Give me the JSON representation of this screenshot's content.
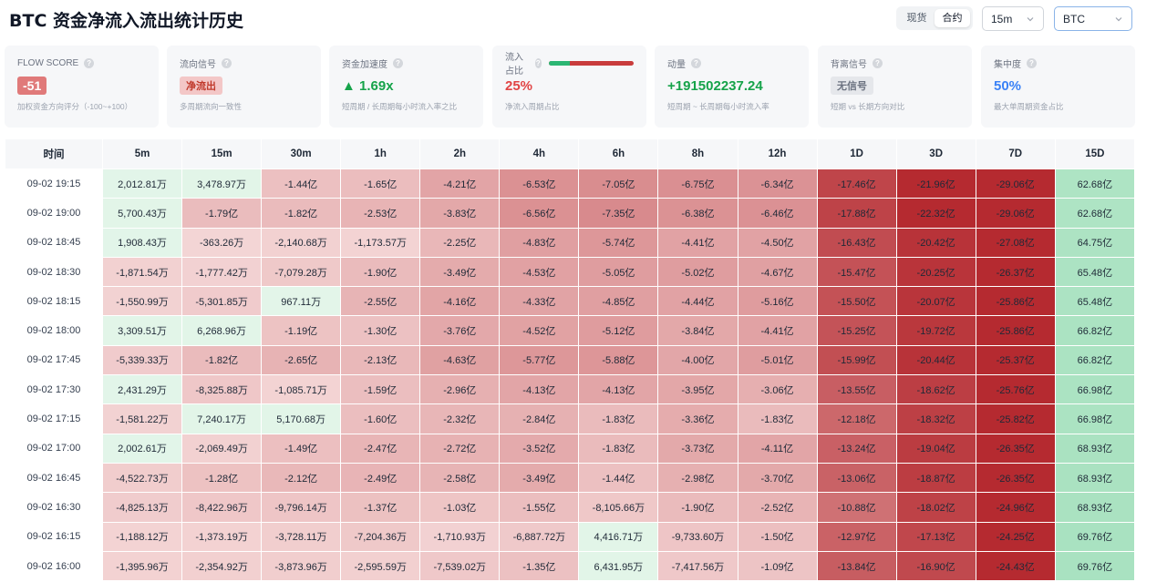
{
  "title": "BTC 资金净流入流出统计历史",
  "market_toggle": {
    "spot": "现货",
    "contract": "合约",
    "active": "contract"
  },
  "timeframe_select": {
    "value": "15m"
  },
  "symbol_select": {
    "value": "BTC"
  },
  "cards": {
    "flow_score": {
      "title": "FLOW SCORE",
      "value": "-51",
      "desc": "加权资金方向评分（-100~+100）"
    },
    "flow_signal": {
      "title": "流向信号",
      "value": "净流出",
      "desc": "多周期流向一致性"
    },
    "acceleration": {
      "title": "资金加速度",
      "value": "▲ 1.69x",
      "desc": "短周期 / 长周期每小时流入率之比"
    },
    "inflow_ratio": {
      "title": "流入占比",
      "value": "25%",
      "ratio": 0.25,
      "desc": "净流入周期占比"
    },
    "momentum": {
      "title": "动量",
      "value": "+191502237.24",
      "desc": "短周期 ~ 长周期每小时流入率"
    },
    "divergence": {
      "title": "背离信号",
      "value": "无信号",
      "desc": "短期 vs 长期方向对比"
    },
    "concentration": {
      "title": "集中度",
      "value": "50%",
      "desc": "最大单周期资金占比"
    }
  },
  "colors": {
    "strong_neg": "#b52a30",
    "light_neg": "#f4d6d6",
    "light_pos": "#e3f5e9",
    "strong_pos": "#a9e2c1",
    "positive_text": "#16a34a",
    "negative_text": "#e14545",
    "blue_text": "#3b82f6"
  },
  "table": {
    "columns": [
      "时间",
      "5m",
      "15m",
      "30m",
      "1h",
      "2h",
      "4h",
      "6h",
      "8h",
      "12h",
      "1D",
      "3D",
      "7D",
      "15D"
    ],
    "rows": [
      {
        "time": "09-02 19:15",
        "cells": [
          "2,012.81万",
          "3,478.97万",
          "-1.44亿",
          "-1.65亿",
          "-4.21亿",
          "-6.53亿",
          "-7.05亿",
          "-6.75亿",
          "-6.34亿",
          "-17.46亿",
          "-21.96亿",
          "-29.06亿",
          "62.68亿"
        ]
      },
      {
        "time": "09-02 19:00",
        "cells": [
          "5,700.43万",
          "-1.79亿",
          "-1.82亿",
          "-2.53亿",
          "-3.83亿",
          "-6.56亿",
          "-7.35亿",
          "-6.38亿",
          "-6.46亿",
          "-17.88亿",
          "-22.32亿",
          "-29.06亿",
          "62.68亿"
        ]
      },
      {
        "time": "09-02 18:45",
        "cells": [
          "1,908.43万",
          "-363.26万",
          "-2,140.68万",
          "-1,173.57万",
          "-2.25亿",
          "-4.83亿",
          "-5.74亿",
          "-4.41亿",
          "-4.50亿",
          "-16.43亿",
          "-20.42亿",
          "-27.08亿",
          "64.75亿"
        ]
      },
      {
        "time": "09-02 18:30",
        "cells": [
          "-1,871.54万",
          "-1,777.42万",
          "-7,079.28万",
          "-1.90亿",
          "-3.49亿",
          "-4.53亿",
          "-5.05亿",
          "-5.02亿",
          "-4.67亿",
          "-15.47亿",
          "-20.25亿",
          "-26.37亿",
          "65.48亿"
        ]
      },
      {
        "time": "09-02 18:15",
        "cells": [
          "-1,550.99万",
          "-5,301.85万",
          "967.11万",
          "-2.55亿",
          "-4.16亿",
          "-4.33亿",
          "-4.85亿",
          "-4.44亿",
          "-5.16亿",
          "-15.50亿",
          "-20.07亿",
          "-25.86亿",
          "65.48亿"
        ]
      },
      {
        "time": "09-02 18:00",
        "cells": [
          "3,309.51万",
          "6,268.96万",
          "-1.19亿",
          "-1.30亿",
          "-3.76亿",
          "-4.52亿",
          "-5.12亿",
          "-3.84亿",
          "-4.41亿",
          "-15.25亿",
          "-19.72亿",
          "-25.86亿",
          "66.82亿"
        ]
      },
      {
        "time": "09-02 17:45",
        "cells": [
          "-5,339.33万",
          "-1.82亿",
          "-2.65亿",
          "-2.13亿",
          "-4.63亿",
          "-5.77亿",
          "-5.88亿",
          "-4.00亿",
          "-5.01亿",
          "-15.99亿",
          "-20.44亿",
          "-25.37亿",
          "66.82亿"
        ]
      },
      {
        "time": "09-02 17:30",
        "cells": [
          "2,431.29万",
          "-8,325.88万",
          "-1,085.71万",
          "-1.59亿",
          "-2.96亿",
          "-4.13亿",
          "-4.13亿",
          "-3.95亿",
          "-3.06亿",
          "-13.55亿",
          "-18.62亿",
          "-25.76亿",
          "66.98亿"
        ]
      },
      {
        "time": "09-02 17:15",
        "cells": [
          "-1,581.22万",
          "7,240.17万",
          "5,170.68万",
          "-1.60亿",
          "-2.32亿",
          "-2.84亿",
          "-1.83亿",
          "-3.36亿",
          "-1.83亿",
          "-12.18亿",
          "-18.32亿",
          "-25.82亿",
          "66.98亿"
        ]
      },
      {
        "time": "09-02 17:00",
        "cells": [
          "2,002.61万",
          "-2,069.49万",
          "-1.49亿",
          "-2.47亿",
          "-2.72亿",
          "-3.52亿",
          "-1.83亿",
          "-3.73亿",
          "-4.11亿",
          "-13.24亿",
          "-19.04亿",
          "-26.35亿",
          "68.93亿"
        ]
      },
      {
        "time": "09-02 16:45",
        "cells": [
          "-4,522.73万",
          "-1.28亿",
          "-2.12亿",
          "-2.49亿",
          "-2.58亿",
          "-3.49亿",
          "-1.44亿",
          "-2.98亿",
          "-3.70亿",
          "-13.06亿",
          "-18.87亿",
          "-26.35亿",
          "68.93亿"
        ]
      },
      {
        "time": "09-02 16:30",
        "cells": [
          "-4,825.13万",
          "-8,422.96万",
          "-9,796.14万",
          "-1.37亿",
          "-1.03亿",
          "-1.55亿",
          "-8,105.66万",
          "-1.90亿",
          "-2.52亿",
          "-10.88亿",
          "-18.02亿",
          "-24.96亿",
          "68.93亿"
        ]
      },
      {
        "time": "09-02 16:15",
        "cells": [
          "-1,188.12万",
          "-1,373.19万",
          "-3,728.11万",
          "-7,204.36万",
          "-1,710.93万",
          "-6,887.72万",
          "4,416.71万",
          "-9,733.60万",
          "-1.50亿",
          "-12.97亿",
          "-17.13亿",
          "-24.25亿",
          "69.76亿"
        ]
      },
      {
        "time": "09-02 16:00",
        "cells": [
          "-1,395.96万",
          "-2,354.92万",
          "-3,873.96万",
          "-2,595.59万",
          "-7,539.02万",
          "-1.35亿",
          "6,431.95万",
          "-7,417.56万",
          "-1.09亿",
          "-13.84亿",
          "-16.90亿",
          "-24.43亿",
          "69.76亿"
        ]
      }
    ]
  }
}
